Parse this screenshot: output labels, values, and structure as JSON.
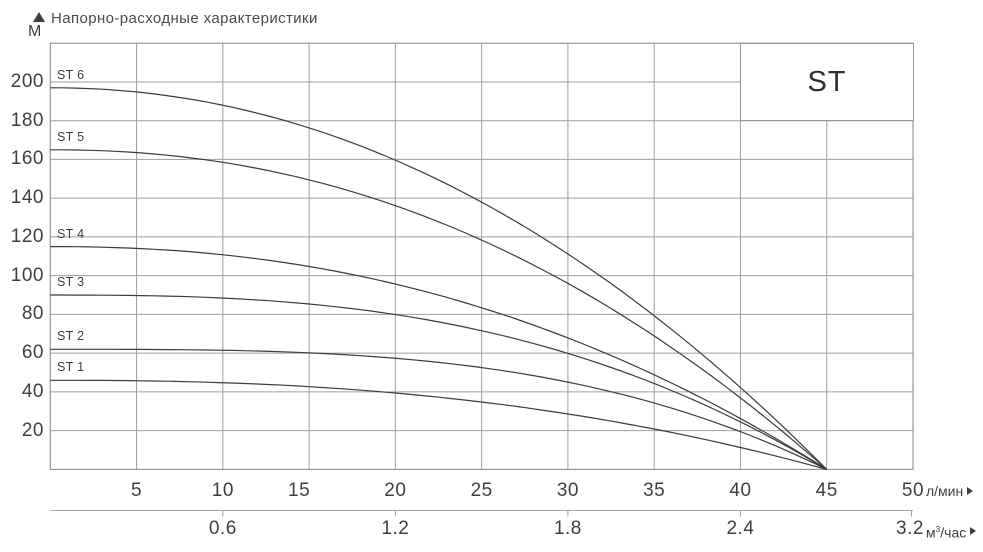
{
  "header": {
    "title": "Напорно-расходные характеристики"
  },
  "series_box": {
    "label": "ST"
  },
  "y_axis": {
    "unit": "М",
    "marker_icon": "up-triangle-icon",
    "tick_labels": [
      "200",
      "180",
      "160",
      "140",
      "120",
      "100",
      "80",
      "60",
      "40",
      "20"
    ],
    "tick_values": [
      200,
      180,
      160,
      140,
      120,
      100,
      80,
      60,
      40,
      20
    ]
  },
  "x_axis_primary": {
    "unit": "л/мин",
    "marker_icon": "right-triangle-icon",
    "tick_labels": [
      "5",
      "10",
      "15",
      "20",
      "25",
      "30",
      "35",
      "40",
      "45",
      "50"
    ],
    "tick_values": [
      5,
      10,
      15,
      20,
      25,
      30,
      35,
      40,
      45,
      50
    ]
  },
  "x_axis_secondary": {
    "unit": "м³/час",
    "unit_base": "м",
    "unit_sup": "3",
    "unit_rest": "/час",
    "marker_icon": "right-triangle-icon",
    "ticks": [
      {
        "label": "0.6",
        "at_lmin": 10
      },
      {
        "label": "1.2",
        "at_lmin": 20
      },
      {
        "label": "1.8",
        "at_lmin": 30
      },
      {
        "label": "2.4",
        "at_lmin": 40
      },
      {
        "label": "3.2",
        "at_lmin": 50
      }
    ]
  },
  "colors": {
    "curve": "#3b3b40",
    "gridline": "#9e9e9e",
    "plot_border": "#8e8e8e",
    "secondary_axis": "#aaaaaa",
    "text": "#3e3e45",
    "background": "#ffffff"
  },
  "chart_data": {
    "type": "line",
    "title": "Напорно-расходные характеристики",
    "ylabel": "М",
    "xlabel": "л/мин",
    "x2label": "м³/час",
    "xlim": [
      0,
      50
    ],
    "ylim": [
      0,
      220
    ],
    "grid": true,
    "x_gridline_step_lmin": 5,
    "y_gridline_step_m": 20,
    "converge_flow_lmin": 45,
    "x_lmin": [
      0,
      5,
      10,
      15,
      20,
      25,
      30,
      35,
      40,
      45
    ],
    "series": [
      {
        "name": "ST 1",
        "head_m": 46,
        "curve_exponent": 2.4,
        "values": [
          46,
          46,
          45,
          43,
          39,
          35,
          29,
          21,
          11,
          0
        ]
      },
      {
        "name": "ST 2",
        "head_m": 62,
        "curve_exponent": 3.2,
        "values": [
          62,
          62,
          61,
          60,
          57,
          53,
          45,
          34,
          20,
          0
        ]
      },
      {
        "name": "ST 3",
        "head_m": 90,
        "curve_exponent": 2.7,
        "values": [
          90,
          90,
          88,
          85,
          80,
          72,
          60,
          44,
          25,
          0
        ]
      },
      {
        "name": "ST 4",
        "head_m": 115,
        "curve_exponent": 2.2,
        "values": [
          115,
          114,
          111,
          105,
          96,
          83,
          68,
          49,
          26,
          0
        ]
      },
      {
        "name": "ST 5",
        "head_m": 165,
        "curve_exponent": 2.15,
        "values": [
          165,
          164,
          158,
          149,
          136,
          118,
          96,
          69,
          37,
          0
        ]
      },
      {
        "name": "ST 6",
        "head_m": 197,
        "curve_exponent": 2.05,
        "values": [
          197,
          195,
          188,
          176,
          160,
          138,
          111,
          79,
          42,
          0
        ]
      }
    ]
  }
}
